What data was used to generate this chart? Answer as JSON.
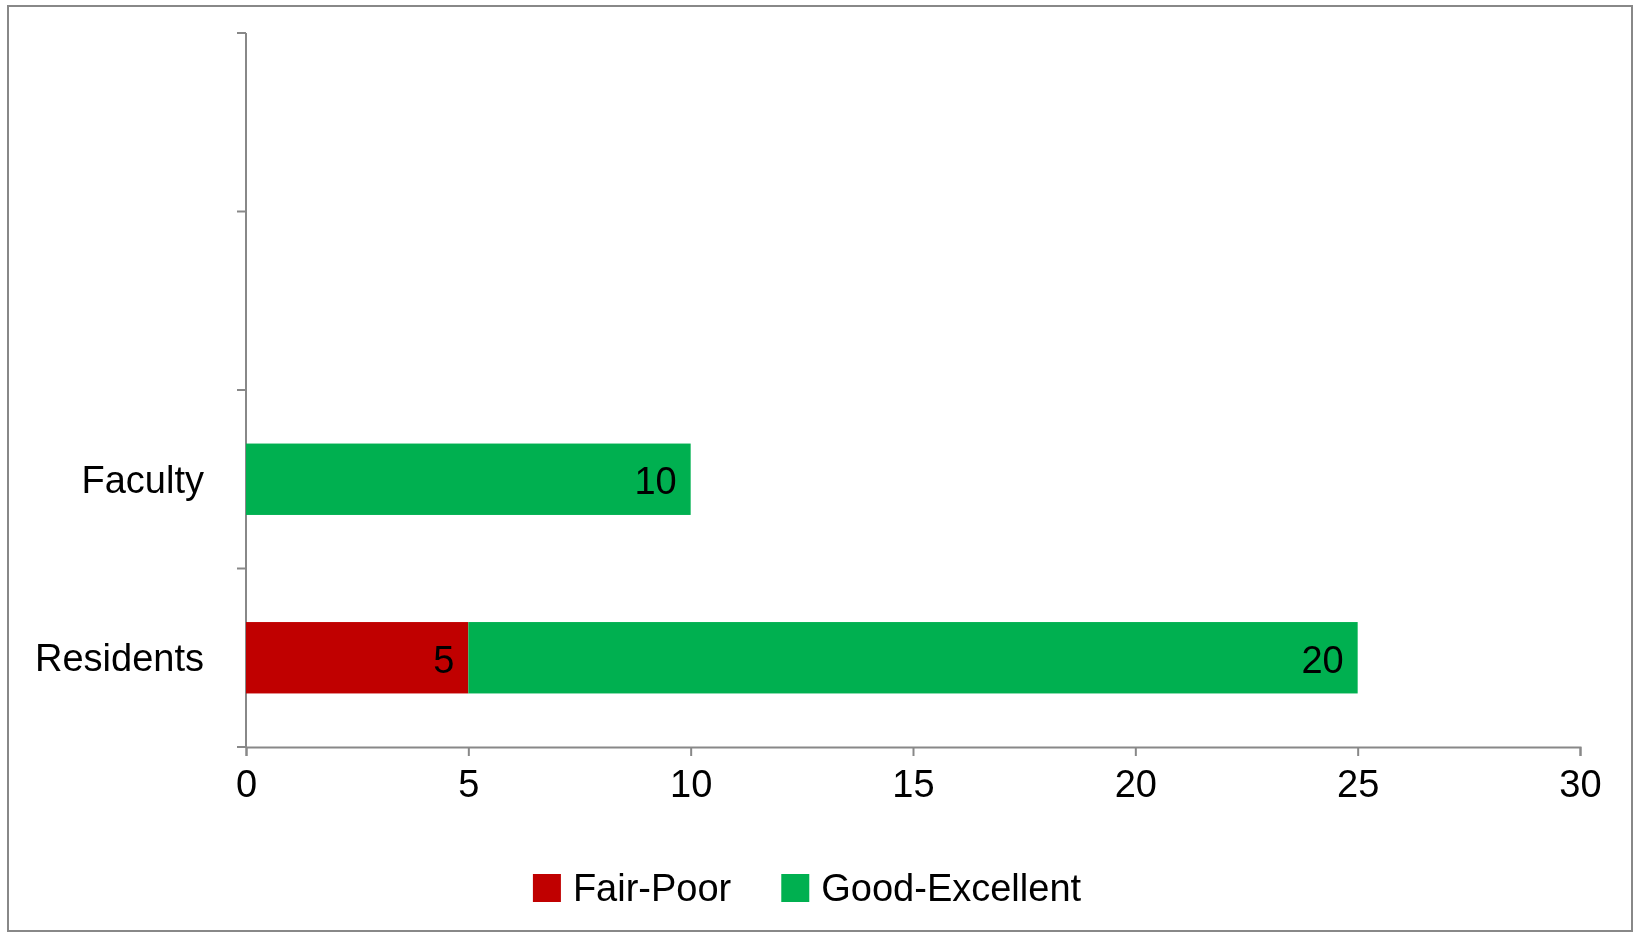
{
  "chart_data": {
    "type": "bar",
    "orientation": "horizontal",
    "stacked": true,
    "categories": [
      null,
      null,
      "Faculty",
      "Residents"
    ],
    "series": [
      {
        "name": "Fair-Poor",
        "color": "#c00000",
        "values": [
          null,
          null,
          null,
          5
        ]
      },
      {
        "name": "Good-Excellent",
        "color": "#00b050",
        "values": [
          null,
          null,
          10,
          20
        ]
      }
    ],
    "xlim": [
      0,
      30
    ],
    "xticks": [
      0,
      5,
      10,
      15,
      20,
      25,
      30
    ],
    "grid": false,
    "legend": "bottom",
    "data_labels": true
  }
}
